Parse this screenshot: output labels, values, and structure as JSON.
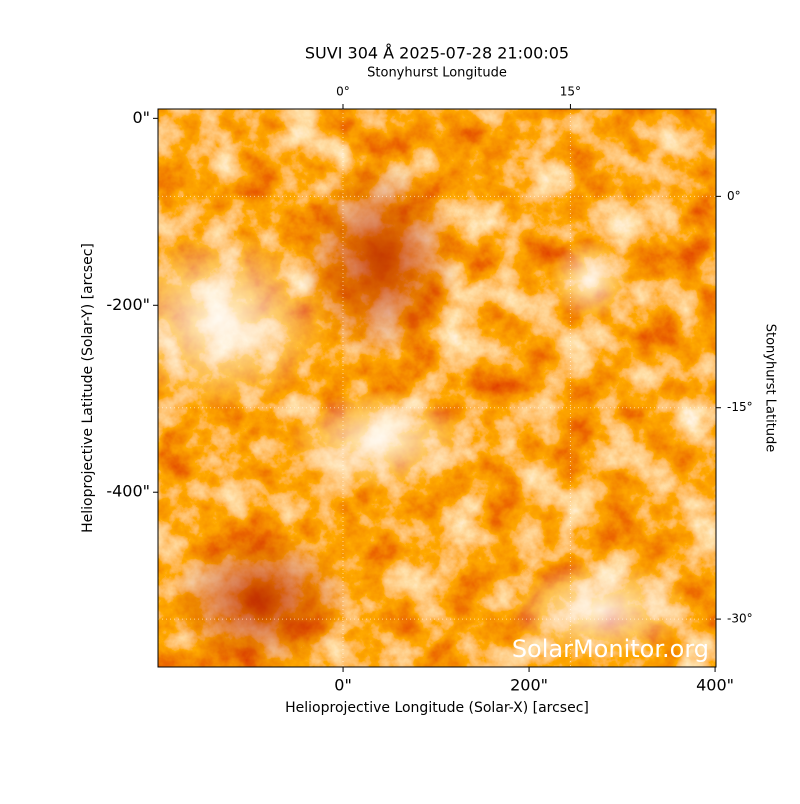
{
  "chart_data": {
    "type": "image",
    "title": "SUVI 304 Å 2025-07-28 21:00:05",
    "xlabel": "Helioprojective Longitude (Solar-X) [arcsec]",
    "ylabel": "Helioprojective Latitude (Solar-Y) [arcsec]",
    "top_label": "Stonyhurst Longitude",
    "right_label": "Stonyhurst Latitude",
    "watermark": "SolarMonitor.org",
    "xlim": [
      -199,
      401
    ],
    "ylim": [
      -587,
      10
    ],
    "xticks": [
      {
        "value": 0,
        "label": "0\""
      },
      {
        "value": 200,
        "label": "200\""
      },
      {
        "value": 400,
        "label": "400\""
      }
    ],
    "yticks": [
      {
        "value": 0,
        "label": "0\""
      },
      {
        "value": -200,
        "label": "-200\""
      },
      {
        "value": -400,
        "label": "-400\""
      }
    ],
    "top_xlim": [
      -12.2,
      24.6
    ],
    "top_xticks": [
      {
        "value": 0,
        "label": "0°"
      },
      {
        "value": 15,
        "label": "15°"
      }
    ],
    "right_ylim": [
      -33.4,
      6.2
    ],
    "right_yticks": [
      {
        "value": 0,
        "label": "0°"
      },
      {
        "value": -15,
        "label": "-15°"
      },
      {
        "value": -30,
        "label": "-30°"
      }
    ],
    "grid": true
  }
}
